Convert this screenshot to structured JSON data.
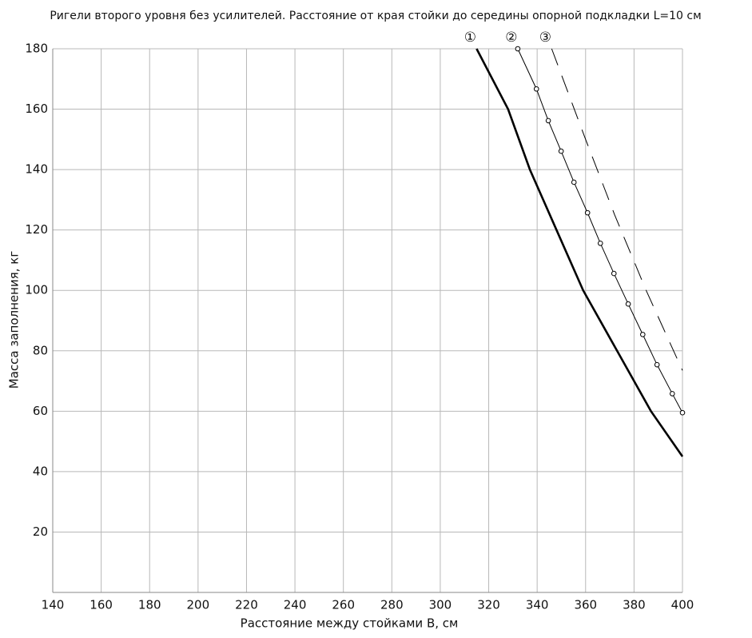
{
  "chart_data": {
    "type": "line",
    "title": "Ригели второго уровня без усилителей. Расстояние от края стойки до середины опорной подкладки L=10 см",
    "x_label": "Расстояние между стойками B, см",
    "y_label": "Масса заполнения, кг",
    "xlim": [
      140,
      400
    ],
    "ylim": [
      0,
      180
    ],
    "xticks": [
      140,
      160,
      180,
      200,
      220,
      240,
      260,
      280,
      300,
      320,
      340,
      360,
      380,
      400
    ],
    "yticks": [
      20,
      40,
      60,
      80,
      100,
      120,
      140,
      160,
      180
    ],
    "grid": true,
    "series": [
      {
        "name": "①",
        "color": "#000000",
        "style": "bold",
        "x": [
          315,
          328,
          337,
          348,
          359,
          373,
          387,
          400
        ],
        "values": [
          180,
          160,
          140,
          120,
          100,
          80,
          60,
          45
        ]
      },
      {
        "name": "②",
        "color": "#000000",
        "style": "markers",
        "x": [
          332,
          339.7,
          344.6,
          349.9,
          355.2,
          360.8,
          366.1,
          371.7,
          377.6,
          383.6,
          389.5,
          395.8,
          400
        ],
        "values": [
          180,
          166.7,
          156.2,
          146.1,
          135.8,
          125.7,
          115.6,
          105.6,
          95.5,
          85.4,
          75.4,
          65.8,
          59.5
        ]
      },
      {
        "name": "③",
        "color": "#000000",
        "style": "dashed",
        "x": [
          346,
          360,
          372,
          385,
          400
        ],
        "values": [
          180,
          150,
          125,
          100,
          73.5
        ]
      }
    ]
  }
}
